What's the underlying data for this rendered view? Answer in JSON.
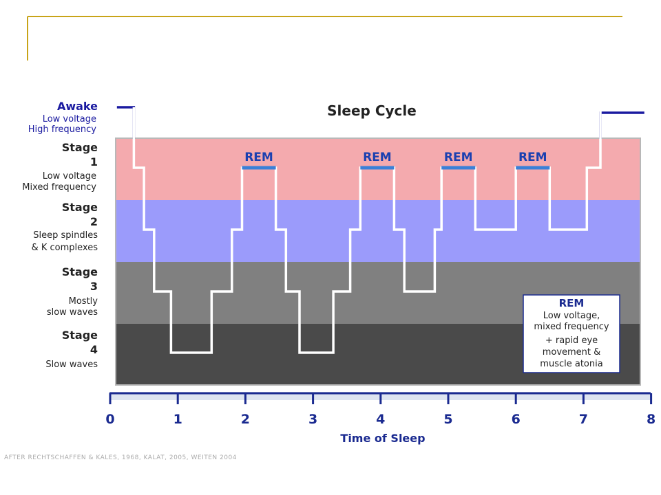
{
  "colors": {
    "frame": "#c8a418",
    "stage1": "#f4aaae",
    "stage2": "#9b9bfb",
    "stage3": "#808080",
    "stage4": "#4a4a4a",
    "hypnogram": "#ffffff",
    "awake_line": "#1a1aa0",
    "rem_bar": "#3a80d8",
    "axis": "#1a2a90"
  },
  "chart_data": {
    "type": "line",
    "title": "Sleep Cycle",
    "xlabel": "Time of Sleep",
    "ylabel": "",
    "xlim": [
      0,
      8
    ],
    "x_ticks": [
      "0",
      "1",
      "2",
      "3",
      "4",
      "5",
      "6",
      "7",
      "8"
    ],
    "levels": [
      {
        "key": "awake",
        "title": "Awake",
        "desc": [
          "Low voltage",
          "High frequency"
        ]
      },
      {
        "key": "stage1",
        "title": "Stage",
        "number": "1",
        "desc": [
          "Low voltage",
          "Mixed frequency"
        ]
      },
      {
        "key": "stage2",
        "title": "Stage",
        "number": "2",
        "desc": [
          "Sleep spindles",
          "& K complexes"
        ]
      },
      {
        "key": "stage3",
        "title": "Stage",
        "number": "3",
        "desc": [
          "Mostly",
          "slow waves"
        ]
      },
      {
        "key": "stage4",
        "title": "Stage",
        "number": "4",
        "desc": [
          "Slow waves"
        ]
      }
    ],
    "series": [
      {
        "points": [
          [
            0.35,
            0
          ],
          [
            0.35,
            1
          ],
          [
            0.5,
            1
          ],
          [
            0.5,
            2
          ],
          [
            0.65,
            2
          ],
          [
            0.65,
            3
          ],
          [
            0.9,
            3
          ],
          [
            0.9,
            4
          ],
          [
            1.5,
            4
          ],
          [
            1.5,
            3
          ],
          [
            1.8,
            3
          ],
          [
            1.8,
            2
          ],
          [
            1.95,
            2
          ],
          [
            1.95,
            1
          ],
          [
            2.45,
            1
          ],
          [
            2.45,
            2
          ],
          [
            2.6,
            2
          ],
          [
            2.6,
            3
          ],
          [
            2.8,
            3
          ],
          [
            2.8,
            4
          ],
          [
            3.3,
            4
          ],
          [
            3.3,
            3
          ],
          [
            3.55,
            3
          ],
          [
            3.55,
            2
          ],
          [
            3.7,
            2
          ],
          [
            3.7,
            1
          ],
          [
            4.2,
            1
          ],
          [
            4.2,
            2
          ],
          [
            4.35,
            2
          ],
          [
            4.35,
            3
          ],
          [
            4.8,
            3
          ],
          [
            4.8,
            2
          ],
          [
            4.9,
            2
          ],
          [
            4.9,
            1
          ],
          [
            5.4,
            1
          ],
          [
            5.4,
            2
          ],
          [
            6.0,
            2
          ],
          [
            6.0,
            1
          ],
          [
            6.5,
            1
          ],
          [
            6.5,
            2
          ],
          [
            7.05,
            2
          ],
          [
            7.05,
            1
          ],
          [
            7.25,
            1
          ],
          [
            7.25,
            0
          ]
        ]
      }
    ],
    "awake_segments": [
      [
        0.1,
        0.35
      ],
      [
        7.25,
        7.9
      ]
    ],
    "rem_periods": [
      {
        "label": "REM",
        "start": 1.95,
        "end": 2.45
      },
      {
        "label": "REM",
        "start": 3.7,
        "end": 4.2
      },
      {
        "label": "REM",
        "start": 4.9,
        "end": 5.4
      },
      {
        "label": "REM",
        "start": 6.0,
        "end": 6.5
      }
    ],
    "legend": {
      "title": "REM",
      "lines": [
        "Low voltage,",
        "mixed frequency",
        "+ rapid eye",
        "movement &",
        "muscle atonia"
      ],
      "placement": "bottom-right"
    },
    "credit": "AFTER RECHTSCHAFFEN & KALES, 1968, KALAT, 2005, WEITEN 2004"
  }
}
